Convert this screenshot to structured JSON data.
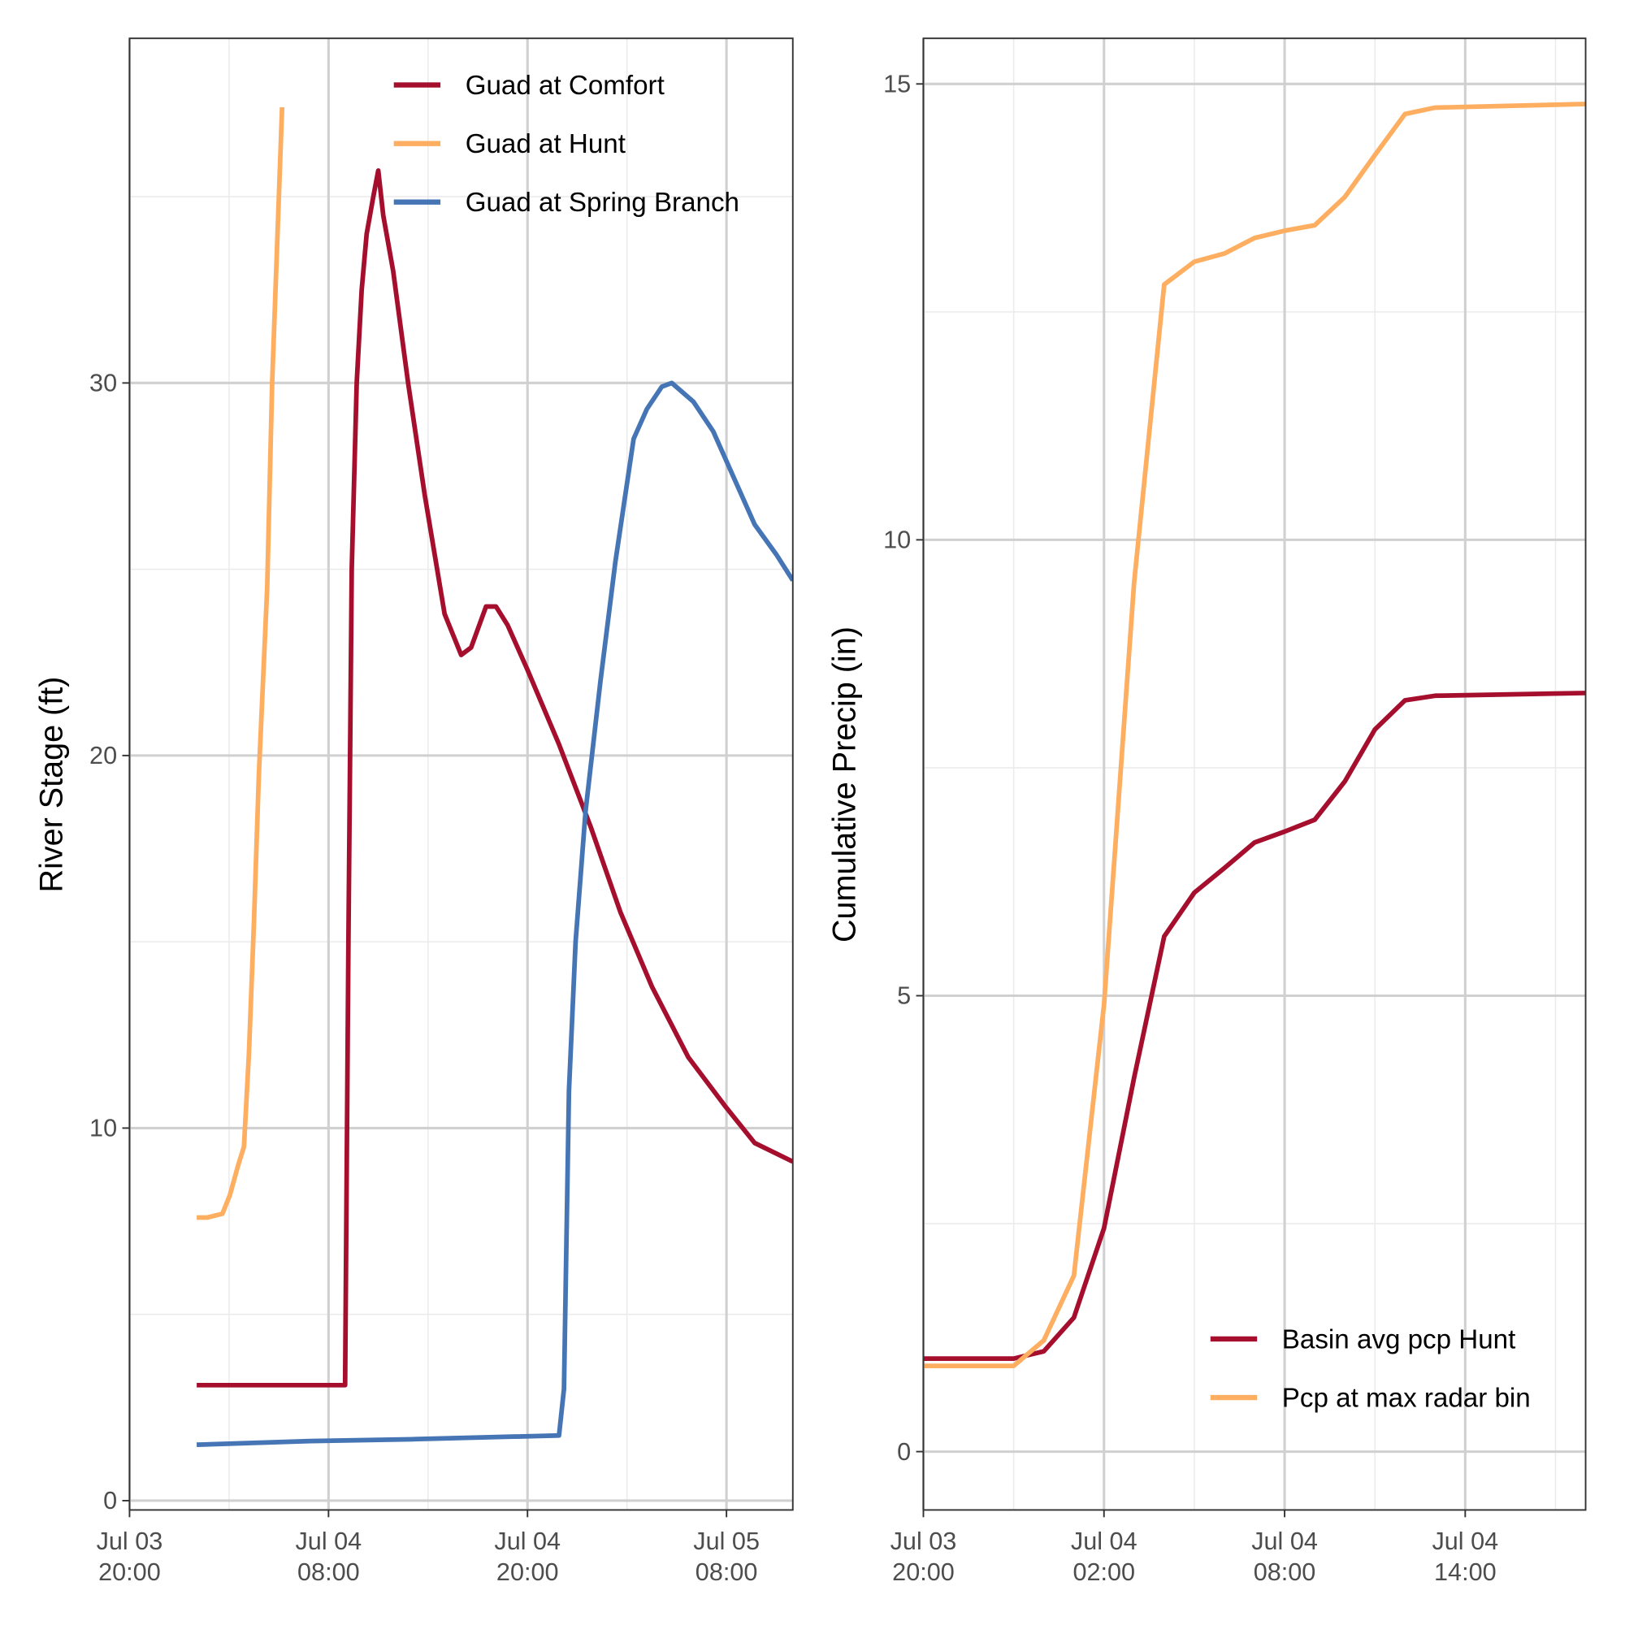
{
  "chart_data": [
    {
      "type": "line",
      "ylabel": "River Stage (ft)",
      "xlim": [
        0,
        40
      ],
      "ylim": [
        -0.25,
        39.25
      ],
      "xticks": [
        {
          "value": 0,
          "label": "Jul 03\n20:00"
        },
        {
          "value": 12,
          "label": "Jul 04\n08:00"
        },
        {
          "value": 24,
          "label": "Jul 04\n20:00"
        },
        {
          "value": 36,
          "label": "Jul 05\n08:00"
        }
      ],
      "yticks": [
        0,
        10,
        20,
        30
      ],
      "grid": true,
      "legend": "top-right",
      "series": [
        {
          "name": "Guad at Comfort",
          "color": "#a50f2d",
          "x": [
            4.05,
            9.05,
            13,
            13.2,
            13.4,
            13.7,
            14,
            14.3,
            14.7,
            15,
            15.3,
            15.9,
            16.8,
            17.8,
            19,
            20,
            20.6,
            21.5,
            22.1,
            22.8,
            24,
            25.9,
            27.8,
            29.6,
            31.5,
            33.7,
            35.9,
            37.7,
            40
          ],
          "values": [
            3.1,
            3.1,
            3.1,
            15,
            25,
            30,
            32.5,
            34,
            35,
            35.7,
            34.5,
            33,
            30,
            27,
            23.8,
            22.7,
            22.9,
            24,
            24,
            23.5,
            22.3,
            20.3,
            18.1,
            15.8,
            13.8,
            11.9,
            10.6,
            9.6,
            9.1
          ]
        },
        {
          "name": "Guad at Hunt",
          "color": "#fdae61",
          "x": [
            4.05,
            4.7,
            5.6,
            6.05,
            6.55,
            6.9,
            7.2,
            7.5,
            7.8,
            8.3,
            8.6,
            9.2
          ],
          "values": [
            7.6,
            7.6,
            7.7,
            8.2,
            9,
            9.5,
            12,
            15.5,
            19.5,
            24.5,
            30,
            37.4
          ]
        },
        {
          "name": "Guad at Spring Branch",
          "color": "#4575b4",
          "x": [
            4.05,
            10.9,
            17.2,
            25.9,
            26.2,
            26.5,
            26.9,
            27.5,
            28.4,
            29.3,
            30.4,
            31.2,
            32.1,
            32.7,
            34,
            35.2,
            36.5,
            37.7,
            39,
            40
          ],
          "values": [
            1.5,
            1.6,
            1.65,
            1.75,
            3,
            11,
            15,
            18.5,
            22,
            25.2,
            28.5,
            29.3,
            29.9,
            30,
            29.5,
            28.7,
            27.4,
            26.2,
            25.4,
            24.7
          ]
        }
      ]
    },
    {
      "type": "line",
      "ylabel": "Cumulative Precip (in)",
      "xlim": [
        0,
        22
      ],
      "ylim": [
        -0.64,
        15.5
      ],
      "xticks": [
        {
          "value": 0,
          "label": "Jul 03\n20:00"
        },
        {
          "value": 6,
          "label": "Jul 04\n02:00"
        },
        {
          "value": 12,
          "label": "Jul 04\n08:00"
        },
        {
          "value": 18,
          "label": "Jul 04\n14:00"
        }
      ],
      "yticks": [
        0,
        5,
        10,
        15
      ],
      "grid": true,
      "legend": "bottom-right",
      "x": [
        0,
        3,
        4,
        5,
        6,
        7,
        8,
        9,
        10,
        11,
        12,
        13,
        14,
        15,
        16,
        17,
        22
      ],
      "series": [
        {
          "name": "Basin avg pcp Hunt",
          "color": "#a50f2d",
          "values": [
            1.02,
            1.02,
            1.1,
            1.47,
            2.45,
            4.1,
            5.65,
            6.13,
            6.4,
            6.68,
            6.8,
            6.93,
            7.35,
            7.92,
            8.24,
            8.29,
            8.32
          ]
        },
        {
          "name": "Pcp at max radar bin",
          "color": "#fdae61",
          "values": [
            0.94,
            0.94,
            1.22,
            1.93,
            4.9,
            9.53,
            12.8,
            13.05,
            13.14,
            13.31,
            13.39,
            13.45,
            13.76,
            14.22,
            14.67,
            14.74,
            14.78
          ]
        }
      ]
    }
  ]
}
